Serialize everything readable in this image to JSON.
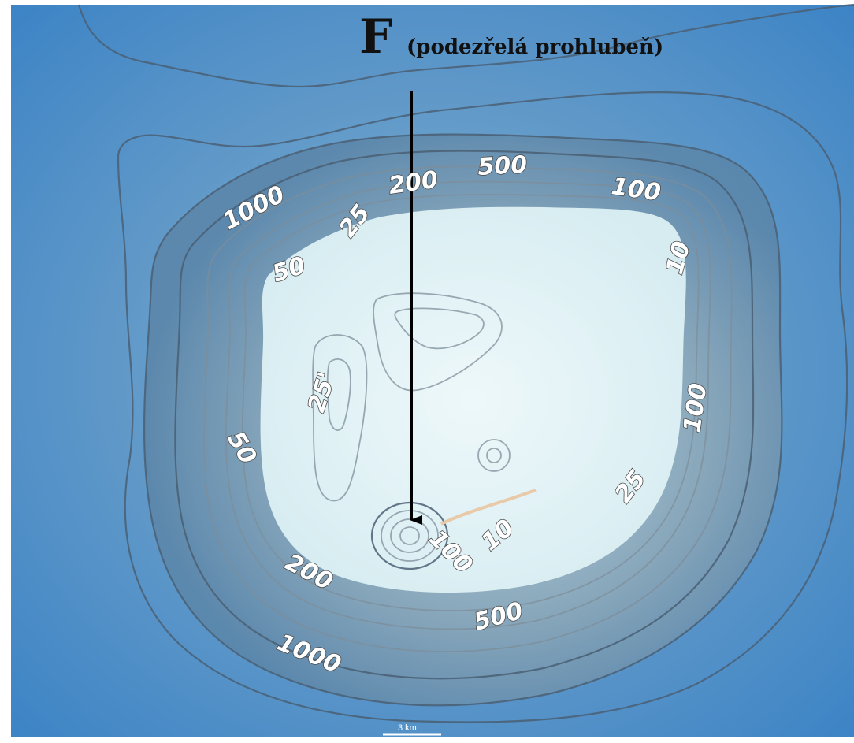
{
  "annotation": {
    "letter": "F",
    "caption": "(podezřelá prohlubeň)"
  },
  "contour_labels": [
    {
      "id": "label-1000-nw",
      "text": "1000"
    },
    {
      "id": "label-25-n",
      "text": "25"
    },
    {
      "id": "label-200-n",
      "text": "200"
    },
    {
      "id": "label-500-n",
      "text": "500"
    },
    {
      "id": "label-100-ne",
      "text": "100"
    },
    {
      "id": "label-50-nw",
      "text": "50"
    },
    {
      "id": "label-10-e",
      "text": "10"
    },
    {
      "id": "label-25-island",
      "text": "25'"
    },
    {
      "id": "label-100-e",
      "text": "100"
    },
    {
      "id": "label-50-w",
      "text": "50"
    },
    {
      "id": "label-25-se",
      "text": "25"
    },
    {
      "id": "label-10-s",
      "text": "10"
    },
    {
      "id": "label-100-s",
      "text": "100"
    },
    {
      "id": "label-200-sw",
      "text": "200"
    },
    {
      "id": "label-500-s",
      "text": "500"
    },
    {
      "id": "label-1000-sw",
      "text": "1000"
    }
  ],
  "scale_bar": {
    "label": "3 km"
  },
  "colors": {
    "deep_water": "#3a7fc0",
    "mid_water": "#6a9ec7",
    "shallow": "#cfe6ee",
    "plateau": "#e4f3f6",
    "arrow": "#000000"
  }
}
